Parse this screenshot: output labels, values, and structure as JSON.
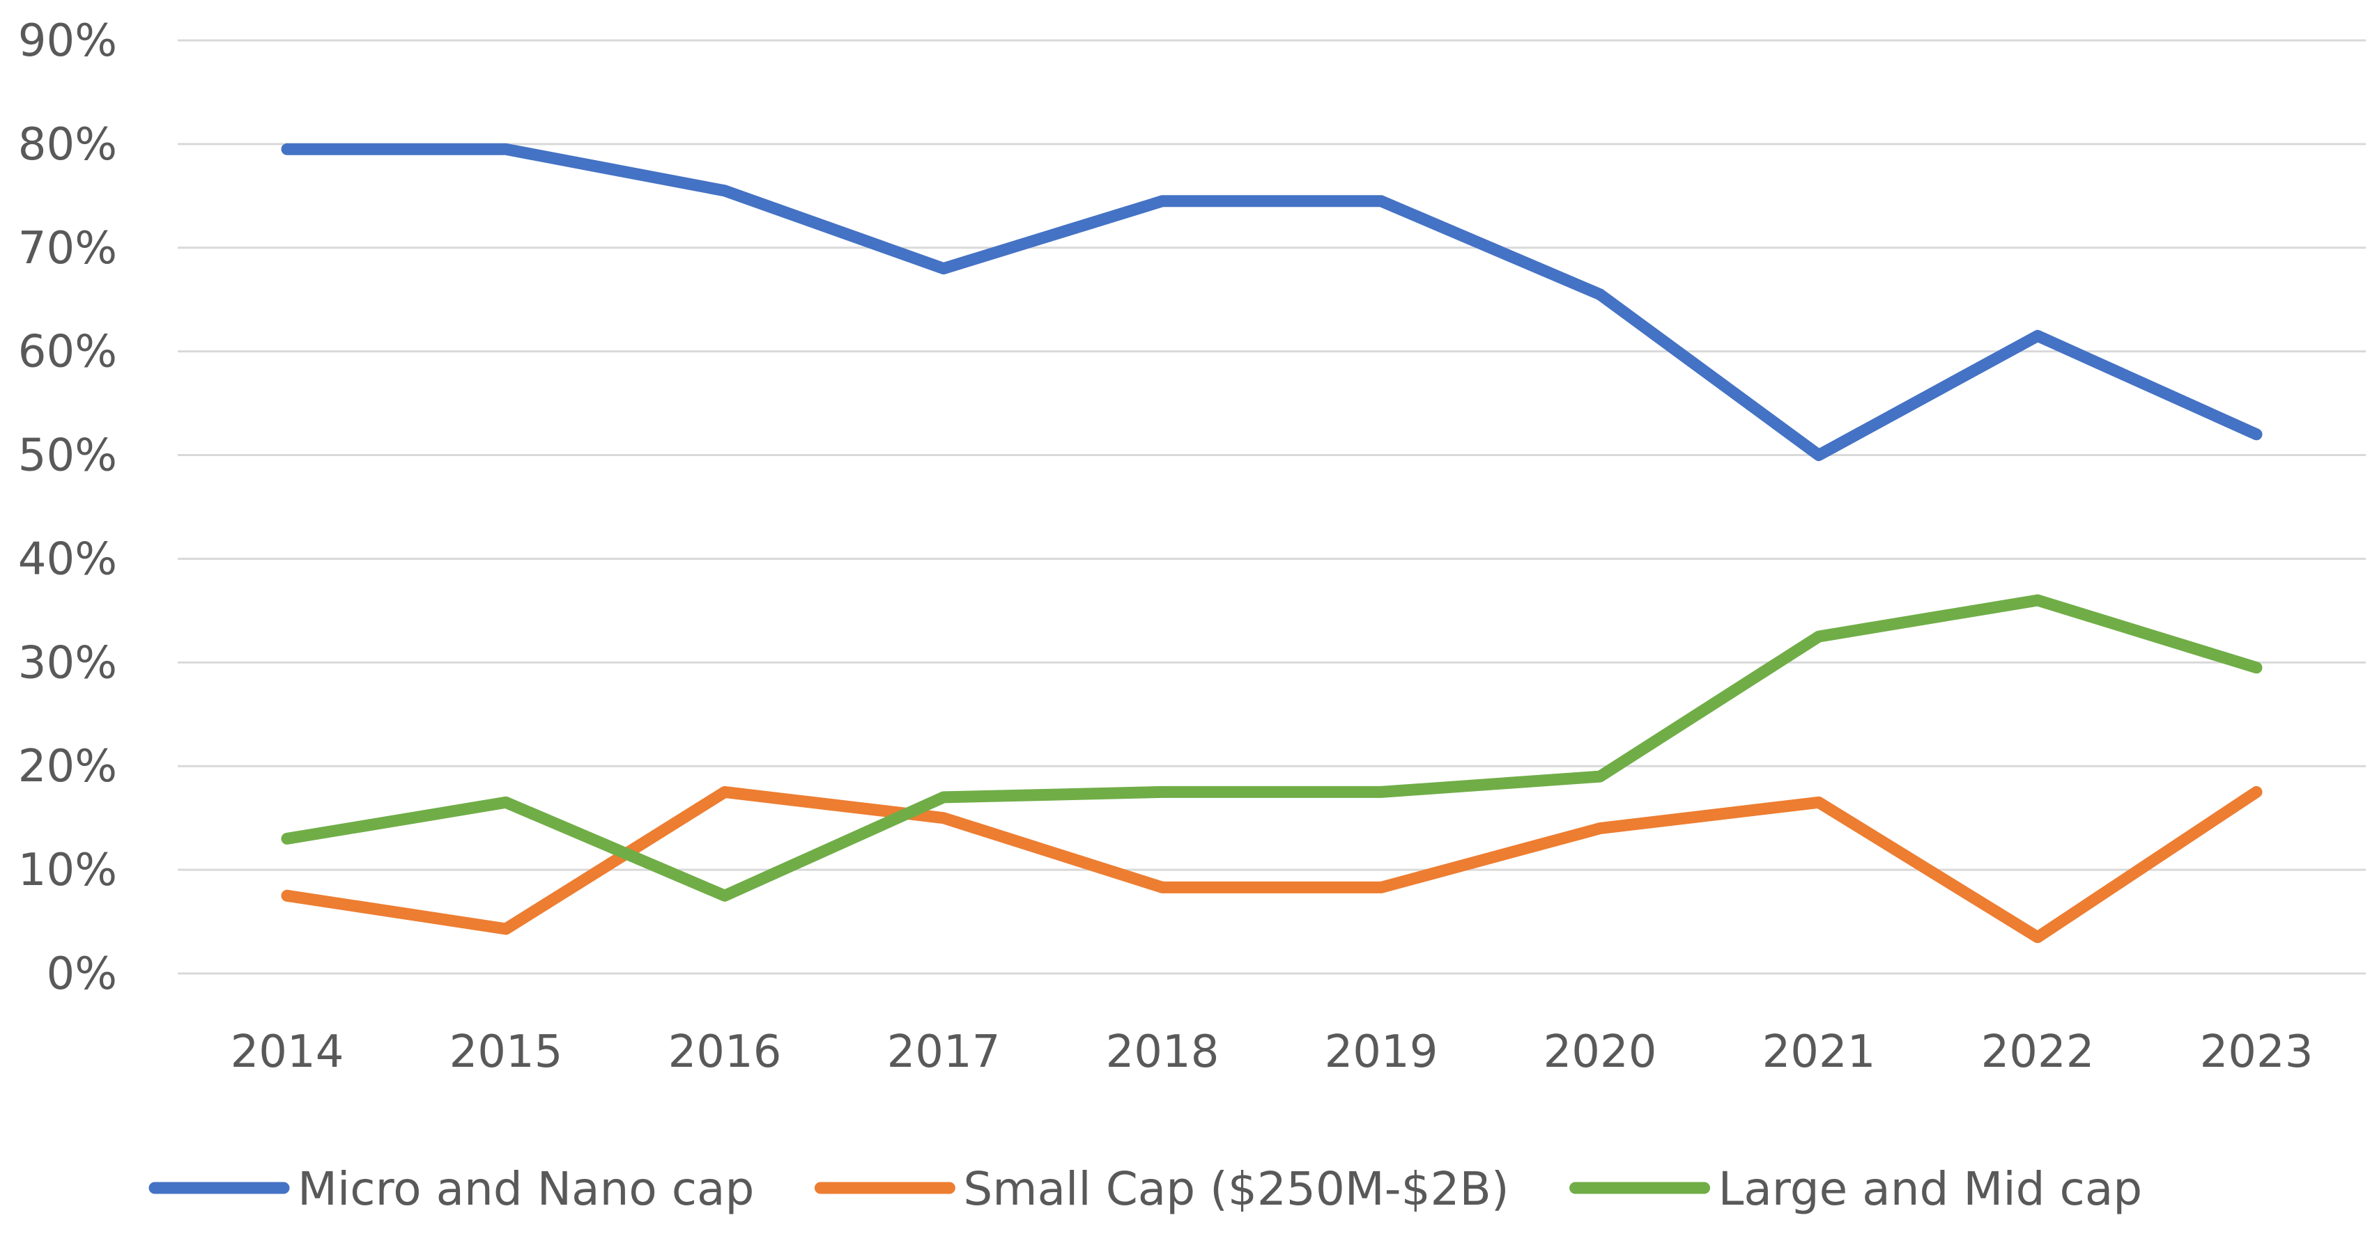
{
  "chart_data": {
    "type": "line",
    "title": "",
    "xlabel": "",
    "ylabel": "",
    "x": [
      "2014",
      "2015",
      "2016",
      "2017",
      "2018",
      "2019",
      "2020",
      "2021",
      "2022",
      "2023"
    ],
    "yticks": [
      "0%",
      "10%",
      "20%",
      "30%",
      "40%",
      "50%",
      "60%",
      "70%",
      "80%",
      "90%"
    ],
    "ylim": [
      0,
      90
    ],
    "grid": true,
    "legend_position": "bottom",
    "series": [
      {
        "name": "Micro and Nano cap",
        "color": "#4472C4",
        "values": [
          79.5,
          79.5,
          75.5,
          68,
          74.5,
          74.5,
          65.5,
          50,
          61.5,
          52
        ]
      },
      {
        "name": "Small Cap ($250M-$2B)",
        "color": "#ED7D31",
        "values": [
          7.5,
          4.3,
          17.5,
          15,
          8.3,
          8.3,
          14,
          16.5,
          3.5,
          17.5
        ]
      },
      {
        "name": "Large and Mid cap",
        "color": "#70AD47",
        "values": [
          13,
          16.5,
          7.5,
          17,
          17.5,
          17.5,
          19,
          32.5,
          36,
          29.5
        ]
      }
    ]
  }
}
